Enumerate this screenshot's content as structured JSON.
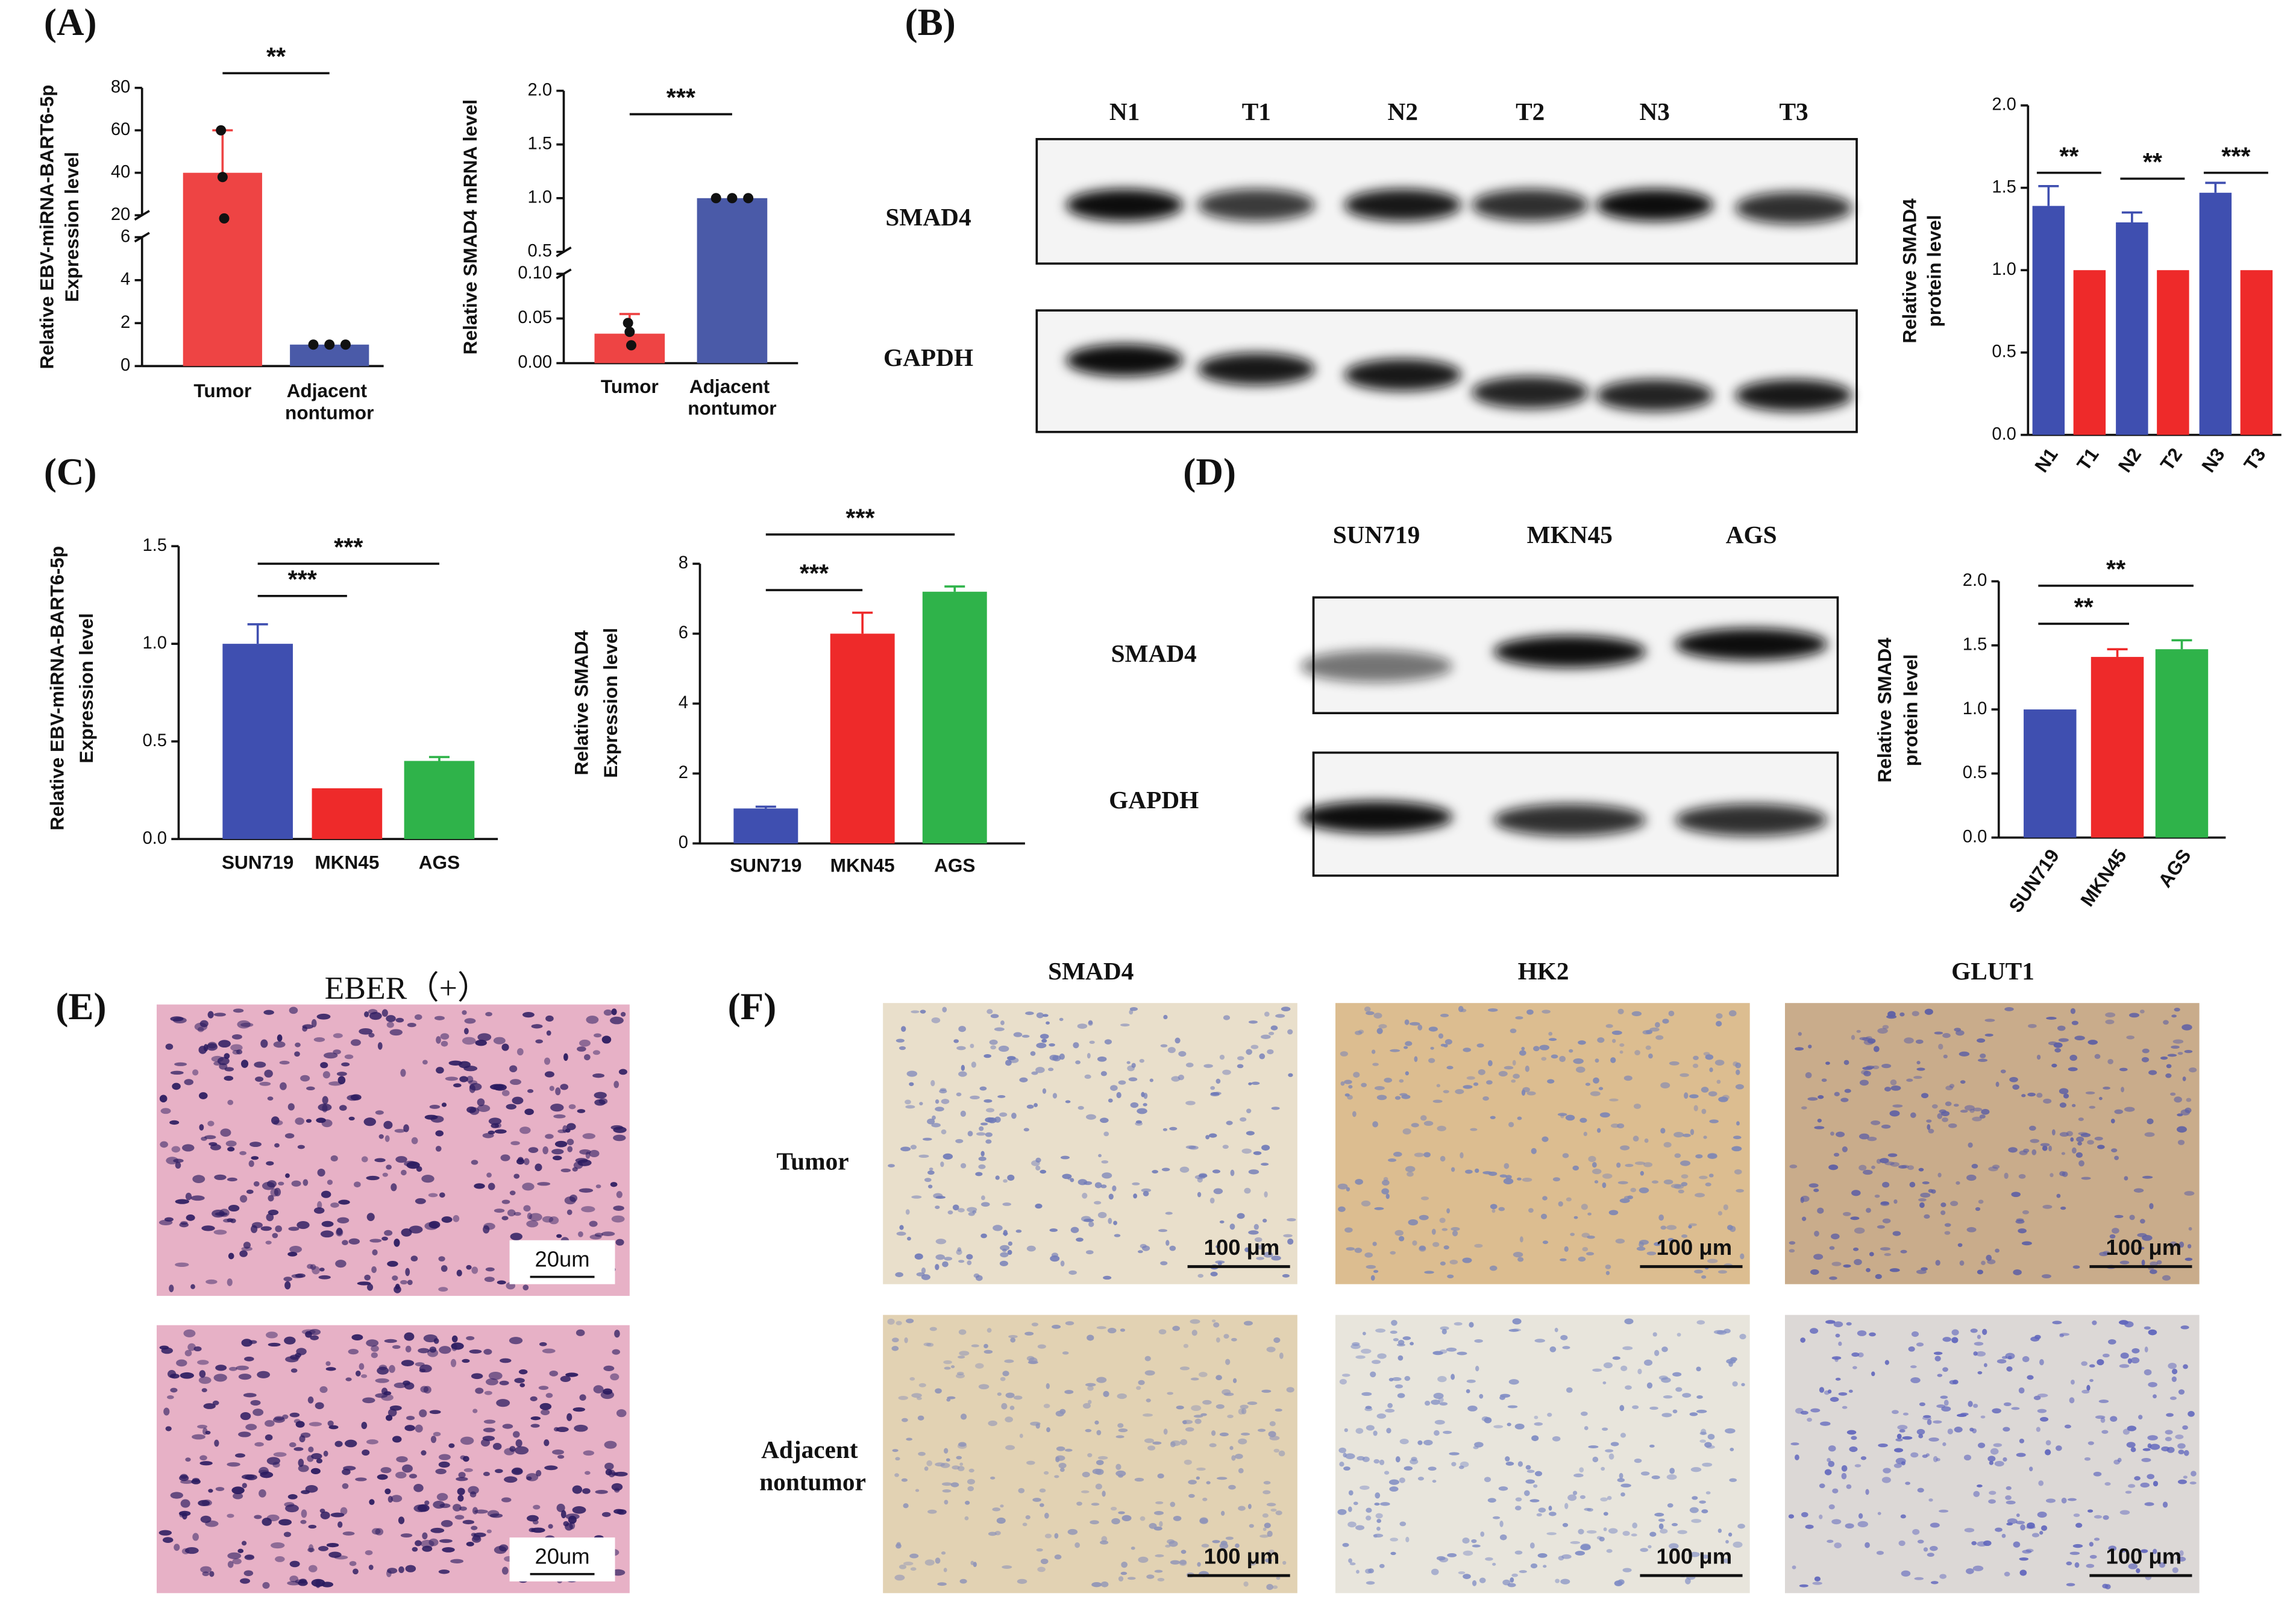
{
  "panel_labels": [
    "(A)",
    "(B)",
    "(C)",
    "(D)",
    "(E)",
    "(F)"
  ],
  "blots": [
    {
      "lanes": [
        "N1",
        "T1",
        "N2",
        "T2",
        "N3",
        "T3"
      ],
      "rows": [
        "SMAD4",
        "GAPDH"
      ]
    },
    {
      "lanes": [
        "SUN719",
        "MKN45",
        "AGS"
      ],
      "rows": [
        "SMAD4",
        "GAPDH"
      ]
    }
  ],
  "histology_e": {
    "title": "EBER（+）",
    "scale_bars": [
      "20um",
      "20um"
    ]
  },
  "histology_f": {
    "columns": [
      "SMAD4",
      "HK2",
      "GLUT1"
    ],
    "rows": [
      "Tumor",
      "Adjacent nontumor"
    ],
    "scale_bars": [
      [
        "100 μm",
        "100 μm",
        "100 μm"
      ],
      [
        "100 μm",
        "100 μm",
        "100 μm"
      ]
    ]
  },
  "chart_data": [
    {
      "type": "bar",
      "ylabel": [
        "Relative EBV-miRNA-BART6-5p",
        "Expression level"
      ],
      "categories": [
        "Tumor",
        "Adjacent nontumor"
      ],
      "values": [
        40,
        1
      ],
      "errors": [
        20,
        null
      ],
      "points": [
        [
          60,
          38,
          18
        ],
        [
          1,
          1,
          1
        ]
      ],
      "colors": [
        "#ee4444",
        "#4a5aa8"
      ],
      "error_style": "both",
      "ylim": [
        0,
        80
      ],
      "axis_break": [
        6,
        20
      ],
      "yticks": [
        0,
        2,
        4,
        6,
        20,
        40,
        60,
        80
      ],
      "significance": [
        {
          "between": [
            "Tumor",
            "Adjacent nontumor"
          ],
          "label": "**"
        }
      ]
    },
    {
      "type": "bar",
      "ylabel": [
        "Relative SMAD4 mRNA level"
      ],
      "categories": [
        "Tumor",
        "Adjacent nontumor"
      ],
      "values": [
        0.033,
        1
      ],
      "errors": [
        0.022,
        null
      ],
      "points": [
        [
          0.045,
          0.035,
          0.02
        ],
        [
          1,
          1,
          1
        ]
      ],
      "colors": [
        "#ee4444",
        "#4a5aa8"
      ],
      "error_style": "both",
      "ylim": [
        0,
        2
      ],
      "axis_break": [
        0.1,
        0.5
      ],
      "yticks": [
        {
          "value": 0,
          "label": "0.00"
        },
        0.05,
        {
          "value": 0.1,
          "label": "0.10"
        },
        0.5,
        {
          "value": 1,
          "label": "1.0"
        },
        1.5,
        {
          "value": 2,
          "label": "2.0"
        }
      ],
      "significance": [
        {
          "between": [
            "Tumor",
            "Adjacent nontumor"
          ],
          "label": "***"
        }
      ]
    },
    {
      "type": "bar",
      "ylabel": [
        "Relative SMAD4",
        "protein level"
      ],
      "categories": [
        "N1",
        "T1",
        "N2",
        "T2",
        "N3",
        "T3"
      ],
      "values": [
        1.39,
        1,
        1.29,
        1,
        1.47,
        1
      ],
      "errors": [
        0.12,
        null,
        0.06,
        null,
        0.06,
        null
      ],
      "colors": [
        "#3f4fb0",
        "#ee2a2a",
        "#3f4fb0",
        "#ee2a2a",
        "#3f4fb0",
        "#ee2a2a"
      ],
      "error_style": "up",
      "ylim": [
        0,
        2
      ],
      "yticks": [
        {
          "value": 0,
          "label": "0.0"
        },
        0.5,
        {
          "value": 1,
          "label": "1.0"
        },
        1.5,
        {
          "value": 2,
          "label": "2.0"
        }
      ],
      "significance": [
        {
          "between": [
            "N1",
            "T1"
          ],
          "label": "**"
        },
        {
          "between": [
            "N2",
            "T2"
          ],
          "label": "**"
        },
        {
          "between": [
            "N3",
            "T3"
          ],
          "label": "***"
        }
      ]
    },
    {
      "type": "bar",
      "ylabel": [
        "Relative EBV-miRNA-BART6-5p",
        "Expression level"
      ],
      "categories": [
        "SUN719",
        "MKN45",
        "AGS"
      ],
      "values": [
        1.0,
        0.26,
        0.4
      ],
      "errors": [
        0.1,
        null,
        0.02
      ],
      "colors": [
        "#3f4fb0",
        "#ee2a2a",
        "#2fb34a"
      ],
      "error_style": "up",
      "ylim": [
        0,
        1.5
      ],
      "yticks": [
        {
          "value": 0,
          "label": "0.0"
        },
        0.5,
        {
          "value": 1,
          "label": "1.0"
        },
        1.5
      ],
      "significance": [
        {
          "between": [
            "SUN719",
            "MKN45"
          ],
          "label": "***"
        },
        {
          "between": [
            "SUN719",
            "AGS"
          ],
          "label": "***"
        }
      ]
    },
    {
      "type": "bar",
      "ylabel": [
        "Relative SMAD4",
        "Expression level"
      ],
      "categories": [
        "SUN719",
        "MKN45",
        "AGS"
      ],
      "values": [
        1.0,
        6.0,
        7.2
      ],
      "errors": [
        0.05,
        0.6,
        0.15
      ],
      "colors": [
        "#3f4fb0",
        "#ee2a2a",
        "#2fb34a"
      ],
      "error_style": "up",
      "ylim": [
        0,
        8
      ],
      "yticks": [
        0,
        2,
        4,
        6,
        8
      ],
      "significance": [
        {
          "between": [
            "SUN719",
            "MKN45"
          ],
          "label": "***"
        },
        {
          "between": [
            "SUN719",
            "AGS"
          ],
          "label": "***"
        }
      ]
    },
    {
      "type": "bar",
      "ylabel": [
        "Relative SMAD4",
        "protein level"
      ],
      "categories": [
        "SUN719",
        "MKN45",
        "AGS"
      ],
      "values": [
        1.0,
        1.41,
        1.47
      ],
      "errors": [
        null,
        0.06,
        0.07
      ],
      "colors": [
        "#3f4fb0",
        "#ee2a2a",
        "#2fb34a"
      ],
      "error_style": "up",
      "ylim": [
        0,
        2
      ],
      "yticks": [
        {
          "value": 0,
          "label": "0.0"
        },
        0.5,
        {
          "value": 1,
          "label": "1.0"
        },
        1.5,
        {
          "value": 2,
          "label": "2.0"
        }
      ],
      "significance": [
        {
          "between": [
            "SUN719",
            "MKN45"
          ],
          "label": "**"
        },
        {
          "between": [
            "SUN719",
            "AGS"
          ],
          "label": "**"
        }
      ]
    }
  ]
}
